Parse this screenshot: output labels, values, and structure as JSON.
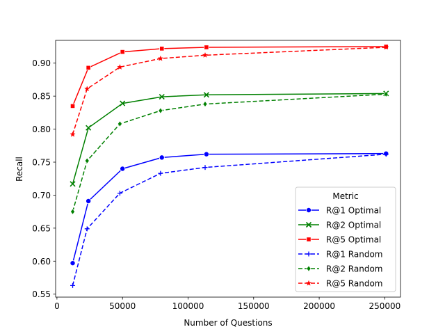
{
  "chart_data": {
    "type": "line",
    "title": "",
    "xlabel": "Number of Questions",
    "ylabel": "Recall",
    "xlim": [
      -1000,
      262000
    ],
    "ylim": [
      0.5455,
      0.9345
    ],
    "x_ticks": [
      0,
      50000,
      100000,
      150000,
      200000,
      250000
    ],
    "y_ticks": [
      0.55,
      0.6,
      0.65,
      0.7,
      0.75,
      0.8,
      0.85,
      0.9
    ],
    "grid": false,
    "legend": {
      "title": "Metric",
      "placement": "lower-right"
    },
    "series": [
      {
        "name": "R@1 Optimal",
        "color": "#0000ff",
        "dash": "solid",
        "marker": "circle",
        "x": [
          12000,
          24000,
          50000,
          80000,
          114000,
          251000
        ],
        "y": [
          0.597,
          0.691,
          0.74,
          0.757,
          0.762,
          0.763
        ]
      },
      {
        "name": "R@2 Optimal",
        "color": "#008000",
        "dash": "solid",
        "marker": "x",
        "x": [
          12000,
          24000,
          50000,
          80000,
          114000,
          251000
        ],
        "y": [
          0.717,
          0.802,
          0.839,
          0.849,
          0.852,
          0.854
        ]
      },
      {
        "name": "R@5 Optimal",
        "color": "#ff0000",
        "dash": "solid",
        "marker": "square",
        "x": [
          12000,
          24000,
          50000,
          80000,
          114000,
          251000
        ],
        "y": [
          0.835,
          0.893,
          0.917,
          0.922,
          0.924,
          0.925
        ]
      },
      {
        "name": "R@1 Random",
        "color": "#0000ff",
        "dash": "dashed",
        "marker": "plus",
        "x": [
          12000,
          23000,
          48000,
          79000,
          113000,
          251000
        ],
        "y": [
          0.563,
          0.649,
          0.703,
          0.733,
          0.742,
          0.762
        ]
      },
      {
        "name": "R@2 Random",
        "color": "#008000",
        "dash": "dashed",
        "marker": "diamond",
        "x": [
          12000,
          23000,
          48000,
          79000,
          113000,
          251000
        ],
        "y": [
          0.675,
          0.752,
          0.808,
          0.828,
          0.838,
          0.853
        ]
      },
      {
        "name": "R@5 Random",
        "color": "#ff0000",
        "dash": "dashed",
        "marker": "star",
        "x": [
          12000,
          23000,
          48000,
          79000,
          113000,
          251000
        ],
        "y": [
          0.792,
          0.861,
          0.894,
          0.907,
          0.912,
          0.924
        ]
      }
    ]
  }
}
